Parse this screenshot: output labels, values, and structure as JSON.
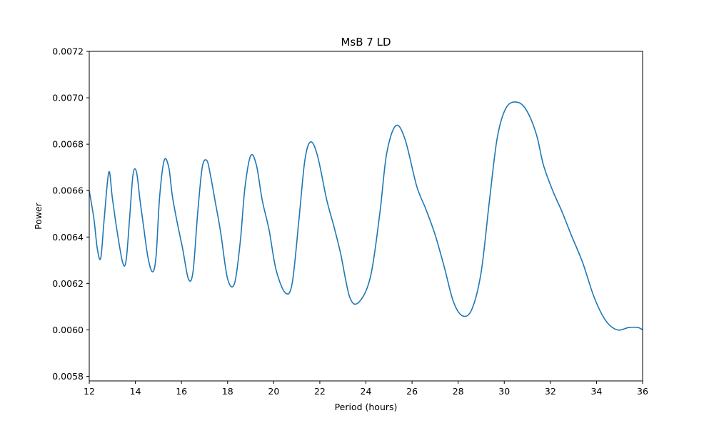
{
  "chart_data": {
    "type": "line",
    "title": "MsB 7 LD",
    "xlabel": "Period (hours)",
    "ylabel": "Power",
    "xlim": [
      12,
      36
    ],
    "ylim": [
      0.00578,
      0.0072
    ],
    "xticks": [
      12,
      14,
      16,
      18,
      20,
      22,
      24,
      26,
      28,
      30,
      32,
      34,
      36
    ],
    "yticks": [
      0.0058,
      0.006,
      0.0062,
      0.0064,
      0.0066,
      0.0068,
      0.007,
      0.0072
    ],
    "ytick_labels": [
      "0.0058",
      "0.0060",
      "0.0062",
      "0.0064",
      "0.0066",
      "0.0068",
      "0.0070",
      "0.0072"
    ],
    "grid": false,
    "line_color": "#1f77b4",
    "series": [
      {
        "x": [
          12.0,
          12.2,
          12.35,
          12.5,
          12.65,
          12.85,
          13.0,
          13.2,
          13.45,
          13.6,
          13.75,
          13.9,
          14.05,
          14.2,
          14.35,
          14.55,
          14.75,
          14.9,
          15.05,
          15.25,
          15.45,
          15.6,
          15.8,
          16.05,
          16.3,
          16.5,
          16.7,
          16.9,
          17.1,
          17.25,
          17.45,
          17.7,
          18.0,
          18.3,
          18.55,
          18.75,
          19.0,
          19.25,
          19.5,
          19.8,
          20.1,
          20.5,
          20.8,
          21.1,
          21.35,
          21.6,
          21.9,
          22.3,
          22.6,
          22.9,
          23.3,
          23.7,
          24.2,
          24.6,
          24.9,
          25.3,
          25.7,
          26.2,
          26.6,
          27.0,
          27.4,
          27.8,
          28.2,
          28.6,
          29.0,
          29.35,
          29.7,
          30.1,
          30.6,
          31.0,
          31.4,
          31.7,
          32.1,
          32.5,
          32.9,
          33.4,
          33.9,
          34.4,
          34.9,
          35.4,
          35.8,
          36.0
        ],
        "y": [
          0.0066,
          0.00648,
          0.00635,
          0.00631,
          0.00648,
          0.00668,
          0.00657,
          0.00643,
          0.00629,
          0.0063,
          0.00648,
          0.00667,
          0.00668,
          0.00656,
          0.00645,
          0.00631,
          0.00625,
          0.00632,
          0.00657,
          0.00673,
          0.0067,
          0.00658,
          0.00647,
          0.00635,
          0.00622,
          0.00625,
          0.0065,
          0.0067,
          0.00673,
          0.00667,
          0.00656,
          0.00642,
          0.00622,
          0.0062,
          0.00638,
          0.00661,
          0.00675,
          0.00671,
          0.00656,
          0.00643,
          0.00626,
          0.00616,
          0.0062,
          0.00648,
          0.00673,
          0.00681,
          0.00675,
          0.00656,
          0.00645,
          0.00633,
          0.00614,
          0.00612,
          0.00623,
          0.0065,
          0.00676,
          0.00688,
          0.00682,
          0.00662,
          0.00652,
          0.00641,
          0.00627,
          0.00612,
          0.00606,
          0.00609,
          0.00625,
          0.00655,
          0.00683,
          0.00696,
          0.00698,
          0.00694,
          0.00684,
          0.00671,
          0.0066,
          0.00651,
          0.00641,
          0.00629,
          0.00614,
          0.00604,
          0.006,
          0.00601,
          0.00601,
          0.006
        ]
      }
    ]
  }
}
